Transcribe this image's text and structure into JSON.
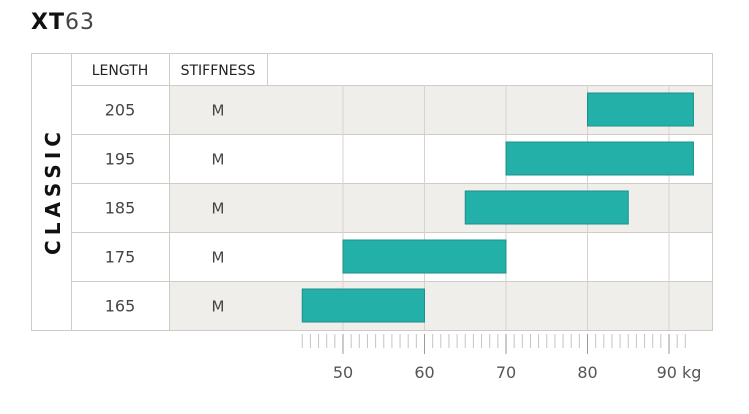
{
  "title": {
    "model_bold": "XT",
    "model_number": "63"
  },
  "table": {
    "section_label": "CLASSIC",
    "col_length": "LENGTH",
    "col_stiffness": "STIFFNESS"
  },
  "chart_data": {
    "type": "bar",
    "orientation": "horizontal-range",
    "title": "XT63",
    "xlabel": "kg",
    "x_unit_label": "90 kg",
    "xlim": [
      45,
      94
    ],
    "x_ticks": [
      50,
      60,
      70,
      80,
      90
    ],
    "x_tick_labels": [
      "50",
      "60",
      "70",
      "80",
      "90 kg"
    ],
    "grid": true,
    "rows": [
      {
        "length": "205",
        "stiffness": "M",
        "min": 80,
        "max": 93
      },
      {
        "length": "195",
        "stiffness": "M",
        "min": 70,
        "max": 93
      },
      {
        "length": "185",
        "stiffness": "M",
        "min": 65,
        "max": 85
      },
      {
        "length": "175",
        "stiffness": "M",
        "min": 50,
        "max": 70
      },
      {
        "length": "165",
        "stiffness": "M",
        "min": 45,
        "max": 60
      }
    ],
    "colors": {
      "bar": "#22b0a8",
      "bar_stroke": "#1d8f89",
      "row_shade": "#f0eeeb",
      "grid": "#d6d3cf",
      "border": "#cfcbc6"
    }
  }
}
